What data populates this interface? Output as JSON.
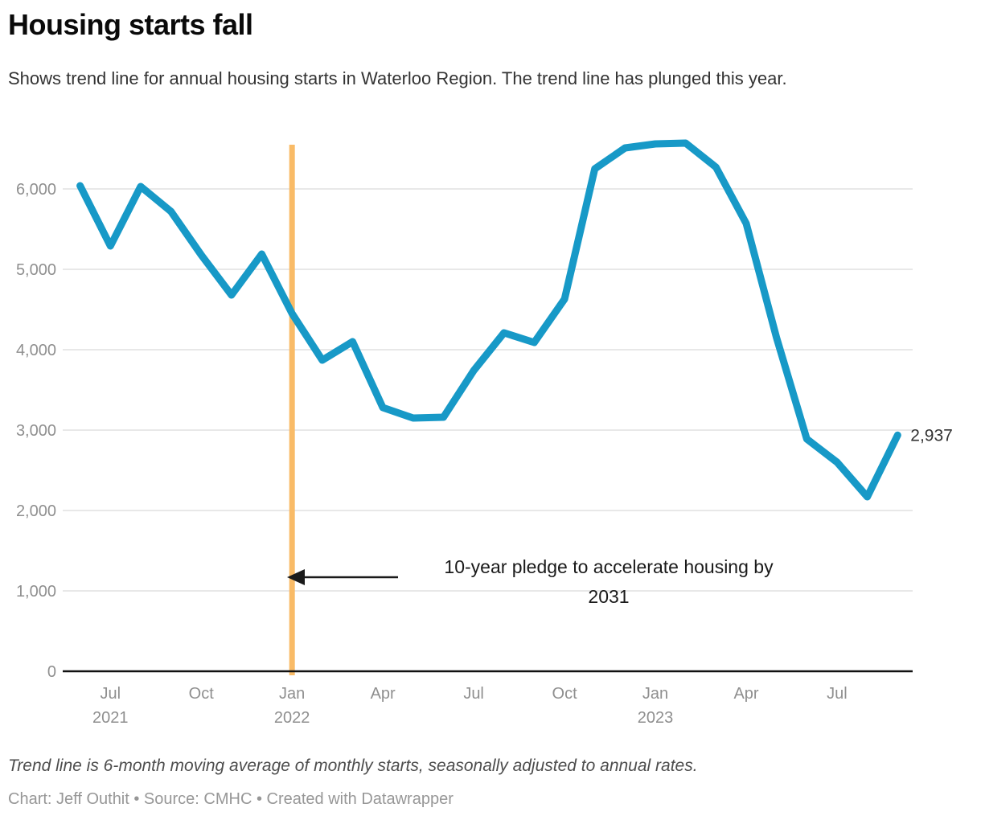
{
  "header": {
    "title": "Housing starts fall",
    "subtitle": "Shows trend line for annual housing starts in Waterloo Region. The trend line has plunged this year."
  },
  "chart_data": {
    "type": "line",
    "title": "Housing starts fall",
    "xlabel": "",
    "ylabel": "",
    "ylim": [
      0,
      6600
    ],
    "grid": "horizontal",
    "legend": "none",
    "x": [
      "Jun 2021",
      "Jul 2021",
      "Aug 2021",
      "Sep 2021",
      "Oct 2021",
      "Nov 2021",
      "Dec 2021",
      "Jan 2022",
      "Feb 2022",
      "Mar 2022",
      "Apr 2022",
      "May 2022",
      "Jun 2022",
      "Jul 2022",
      "Aug 2022",
      "Sep 2022",
      "Oct 2022",
      "Nov 2022",
      "Dec 2022",
      "Jan 2023",
      "Feb 2023",
      "Mar 2023",
      "Apr 2023",
      "May 2023",
      "Jun 2023",
      "Jul 2023",
      "Aug 2023",
      "Sep 2023"
    ],
    "series": [
      {
        "name": "6-month moving average of monthly housing starts (annual rate)",
        "values": [
          6040,
          5290,
          6030,
          5720,
          5180,
          4680,
          5190,
          4450,
          3870,
          4100,
          3280,
          3150,
          3160,
          3740,
          4210,
          4090,
          4630,
          6250,
          6510,
          6560,
          6570,
          6270,
          5570,
          4150,
          2890,
          2600,
          2170,
          2937
        ]
      }
    ],
    "y_ticks": [
      {
        "value": 0,
        "label": "0"
      },
      {
        "value": 1000,
        "label": "1,000"
      },
      {
        "value": 2000,
        "label": "2,000"
      },
      {
        "value": 3000,
        "label": "3,000"
      },
      {
        "value": 4000,
        "label": "4,000"
      },
      {
        "value": 5000,
        "label": "5,000"
      },
      {
        "value": 6000,
        "label": "6,000"
      }
    ],
    "x_ticks": [
      {
        "index": 1,
        "label": "Jul",
        "year": "2021"
      },
      {
        "index": 4,
        "label": "Oct",
        "year": ""
      },
      {
        "index": 7,
        "label": "Jan",
        "year": "2022"
      },
      {
        "index": 10,
        "label": "Apr",
        "year": ""
      },
      {
        "index": 13,
        "label": "Jul",
        "year": ""
      },
      {
        "index": 16,
        "label": "Oct",
        "year": ""
      },
      {
        "index": 19,
        "label": "Jan",
        "year": "2023"
      },
      {
        "index": 22,
        "label": "Apr",
        "year": ""
      },
      {
        "index": 25,
        "label": "Jul",
        "year": ""
      }
    ],
    "vline": {
      "at_index": 7,
      "date": "Jan 2022"
    },
    "annotation": {
      "lines": [
        "10-year pledge to accelerate housing by",
        "2031"
      ],
      "arrow": "points-left-to-vline"
    },
    "end_label": "2,937",
    "colors": {
      "line": "#1799c7",
      "vline": "#f9bb67",
      "grid": "#e8e8e8",
      "axis": "#111111",
      "tick_text": "#8f8f8f",
      "annotation_text": "#1a1a1a",
      "end_label_text": "#323232"
    }
  },
  "footer": {
    "note": "Trend line is 6-month moving average of monthly starts, seasonally adjusted to annual rates.",
    "byline": "Chart: Jeff Outhit • Source: CMHC • Created with Datawrapper"
  }
}
